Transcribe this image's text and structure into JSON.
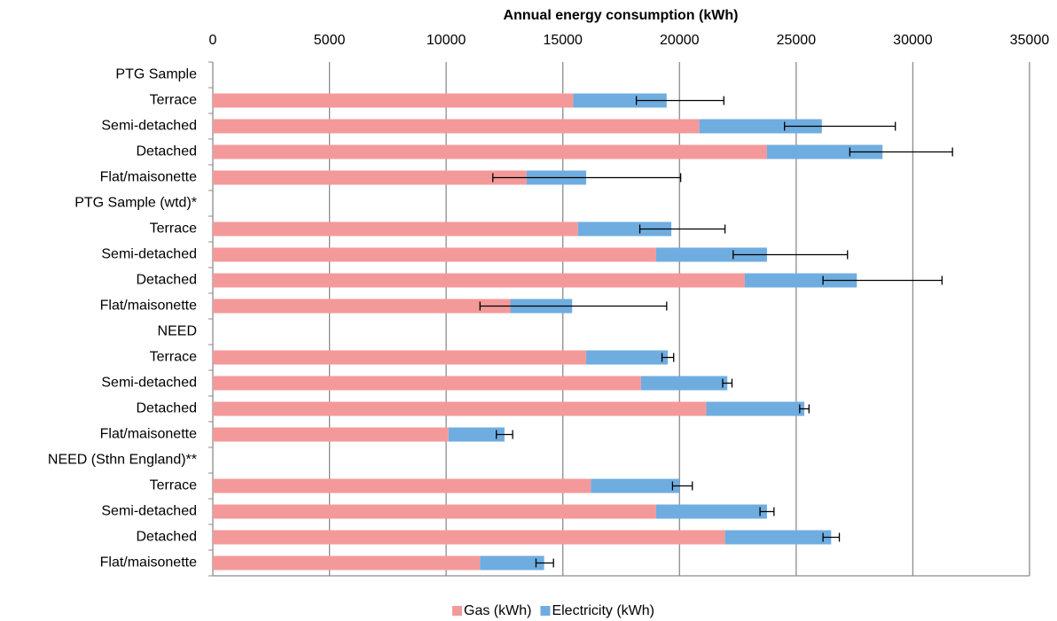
{
  "chart_data": {
    "type": "stacked-bar-horizontal",
    "title": "Annual energy consumption (kWh)",
    "categories": [
      "PTG Sample",
      "Terrace",
      "Semi-detached",
      "Detached",
      "Flat/maisonette",
      "PTG Sample (wtd)*",
      "Terrace",
      "Semi-detached",
      "Detached",
      "Flat/maisonette",
      "NEED",
      "Terrace",
      "Semi-detached",
      "Detached",
      "Flat/maisonette",
      "NEED (Sthn England)**",
      "Terrace",
      "Semi-detached",
      "Detached",
      "Flat/maisonette"
    ],
    "series": [
      {
        "name": "Gas (kWh)",
        "color": "#f4999a",
        "values": [
          null,
          15450,
          20850,
          23750,
          13450,
          null,
          15650,
          19000,
          22800,
          12750,
          null,
          16000,
          18350,
          21150,
          10100,
          null,
          16200,
          19000,
          21950,
          11450
        ]
      },
      {
        "name": "Electricity (kWh)",
        "color": "#6fade0",
        "values": [
          null,
          4000,
          5250,
          4950,
          2550,
          null,
          4000,
          4750,
          4800,
          2650,
          null,
          3500,
          3700,
          4200,
          2400,
          null,
          3800,
          4750,
          4550,
          2750
        ],
        "error_minus": [
          null,
          1300,
          1600,
          1400,
          4000,
          null,
          1350,
          1450,
          1450,
          3950,
          null,
          250,
          200,
          200,
          350,
          null,
          300,
          300,
          350,
          350
        ],
        "error_plus": [
          null,
          2450,
          3150,
          3000,
          4050,
          null,
          2300,
          3450,
          3650,
          4050,
          null,
          250,
          200,
          200,
          350,
          null,
          550,
          300,
          350,
          400
        ]
      }
    ],
    "xlim": [
      0,
      35000
    ],
    "xticks": [
      0,
      5000,
      10000,
      15000,
      20000,
      25000,
      30000,
      35000
    ],
    "grid": true,
    "legend": "bottom"
  }
}
